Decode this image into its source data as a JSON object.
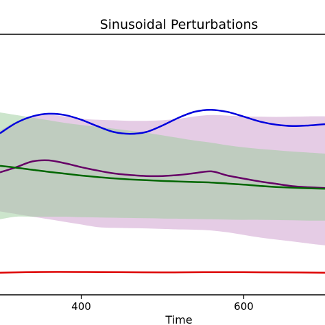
{
  "chart_data": {
    "type": "line",
    "title": "Sinusoidal Perturbations",
    "xlabel": "Time",
    "ylabel": "",
    "xlim": [
      300,
      700
    ],
    "ylim": [
      0,
      1
    ],
    "xticks": [
      400,
      600
    ],
    "grid": false,
    "legend": "none",
    "series": [
      {
        "color": "#0000dd",
        "x": [
          300,
          320,
          340,
          360,
          380,
          400,
          420,
          440,
          460,
          480,
          500,
          520,
          540,
          560,
          580,
          600,
          620,
          640,
          660,
          680,
          700
        ],
        "values": [
          0.62,
          0.66,
          0.685,
          0.695,
          0.69,
          0.672,
          0.647,
          0.625,
          0.618,
          0.625,
          0.65,
          0.68,
          0.703,
          0.71,
          0.702,
          0.684,
          0.665,
          0.653,
          0.648,
          0.65,
          0.655
        ]
      },
      {
        "color": "#660066",
        "x": [
          300,
          320,
          340,
          360,
          380,
          400,
          420,
          440,
          460,
          480,
          500,
          520,
          540,
          560,
          580,
          600,
          620,
          640,
          660,
          680,
          700
        ],
        "values": [
          0.47,
          0.49,
          0.512,
          0.516,
          0.505,
          0.49,
          0.477,
          0.466,
          0.46,
          0.456,
          0.456,
          0.46,
          0.467,
          0.474,
          0.458,
          0.446,
          0.435,
          0.426,
          0.417,
          0.413,
          0.41
        ]
      },
      {
        "color": "#006600",
        "x": [
          300,
          320,
          340,
          360,
          380,
          400,
          420,
          440,
          460,
          480,
          500,
          520,
          540,
          560,
          580,
          600,
          620,
          640,
          660,
          680,
          700
        ],
        "values": [
          0.495,
          0.488,
          0.48,
          0.472,
          0.465,
          0.458,
          0.452,
          0.447,
          0.443,
          0.44,
          0.437,
          0.435,
          0.433,
          0.431,
          0.427,
          0.423,
          0.418,
          0.414,
          0.411,
          0.409,
          0.407
        ]
      },
      {
        "color": "#dd0000",
        "x": [
          300,
          350,
          400,
          450,
          500,
          550,
          600,
          650,
          700
        ],
        "values": [
          0.085,
          0.088,
          0.088,
          0.087,
          0.086,
          0.087,
          0.087,
          0.086,
          0.085
        ]
      }
    ],
    "bands": [
      {
        "color": "#cc99cc",
        "x": [
          300,
          320,
          340,
          360,
          380,
          400,
          420,
          440,
          460,
          480,
          500,
          520,
          540,
          560,
          580,
          600,
          620,
          640,
          660,
          680,
          700
        ],
        "upper": [
          0.63,
          0.665,
          0.685,
          0.69,
          0.685,
          0.676,
          0.672,
          0.67,
          0.668,
          0.668,
          0.67,
          0.676,
          0.685,
          0.69,
          0.688,
          0.685,
          0.684,
          0.683,
          0.684,
          0.685,
          0.685
        ],
        "lower": [
          0.32,
          0.31,
          0.3,
          0.29,
          0.28,
          0.27,
          0.26,
          0.257,
          0.256,
          0.255,
          0.253,
          0.251,
          0.25,
          0.247,
          0.24,
          0.23,
          0.22,
          0.212,
          0.205,
          0.197,
          0.19
        ]
      },
      {
        "color": "#99cc99",
        "x": [
          300,
          320,
          340,
          360,
          380,
          400,
          420,
          440,
          460,
          480,
          500,
          520,
          540,
          560,
          580,
          600,
          620,
          640,
          660,
          680,
          700
        ],
        "upper": [
          0.7,
          0.69,
          0.68,
          0.67,
          0.66,
          0.652,
          0.645,
          0.638,
          0.63,
          0.622,
          0.612,
          0.602,
          0.592,
          0.584,
          0.574,
          0.566,
          0.56,
          0.555,
          0.55,
          0.546,
          0.542
        ],
        "lower": [
          0.29,
          0.3,
          0.3,
          0.3,
          0.3,
          0.298,
          0.297,
          0.296,
          0.295,
          0.294,
          0.293,
          0.292,
          0.291,
          0.29,
          0.289,
          0.288,
          0.288,
          0.287,
          0.286,
          0.285,
          0.285
        ]
      }
    ]
  }
}
